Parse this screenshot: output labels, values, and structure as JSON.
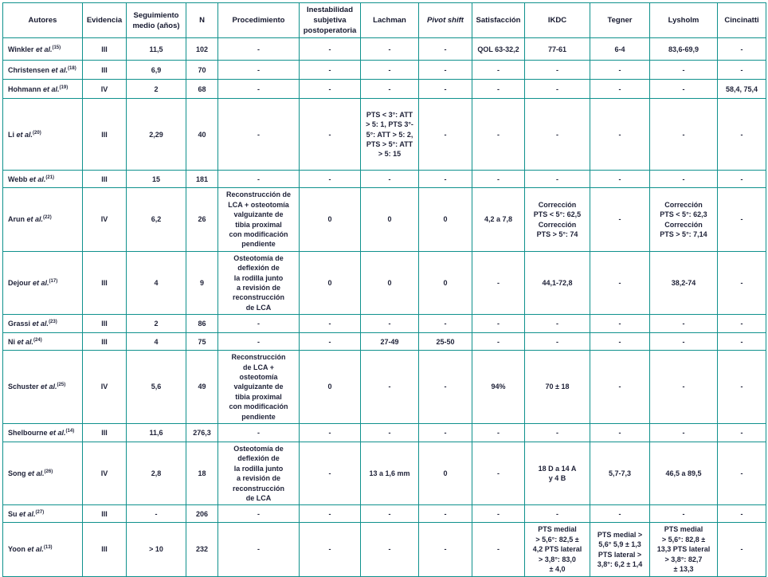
{
  "colors": {
    "border_teal": "#0f918d",
    "text": "#1e2137",
    "background": "#ffffff"
  },
  "table": {
    "columns": [
      {
        "label": "Autores",
        "italic": false
      },
      {
        "label": "Evidencia",
        "italic": false
      },
      {
        "label": "Seguimiento\nmedio (años)",
        "italic": false
      },
      {
        "label": "N",
        "italic": false
      },
      {
        "label": "Procedimiento",
        "italic": false
      },
      {
        "label": "Inestabilidad\nsubjetiva\npostoperatoria",
        "italic": false
      },
      {
        "label": "Lachman",
        "italic": false
      },
      {
        "label": "Pivot shift",
        "italic": true
      },
      {
        "label": "Satisfacción",
        "italic": false
      },
      {
        "label": "IKDC",
        "italic": false
      },
      {
        "label": "Tegner",
        "italic": false
      },
      {
        "label": "Lysholm",
        "italic": false
      },
      {
        "label": "Cincinatti",
        "italic": false
      }
    ],
    "rows": [
      {
        "author": {
          "name": "Winkler",
          "etal": "et al.",
          "ref": "(15)"
        },
        "cells": [
          "III",
          "11,5",
          "102",
          "-",
          "-",
          "-",
          "-",
          "QOL 63-32,2",
          "77-61",
          "6-4",
          "83,6-69,9",
          "-"
        ]
      },
      {
        "author": {
          "name": "Christensen",
          "etal": "et al.",
          "ref": "(18)"
        },
        "cells": [
          "III",
          "6,9",
          "70",
          "-",
          "-",
          "-",
          "-",
          "-",
          "-",
          "-",
          "-",
          "-"
        ]
      },
      {
        "author": {
          "name": "Hohmann",
          "etal": "et al.",
          "ref": "(19)"
        },
        "cells": [
          "IV",
          "2",
          "68",
          "-",
          "-",
          "-",
          "-",
          "-",
          "-",
          "-",
          "-",
          "58,4, 75,4"
        ]
      },
      {
        "author": {
          "name": "Li",
          "etal": "et al.",
          "ref": "(20)"
        },
        "cells": [
          "III",
          "2,29",
          "40",
          "-",
          "-",
          "PTS < 3°: ATT\n> 5: 1, PTS 3°-\n5°: ATT > 5: 2,\nPTS > 5°: ATT\n> 5: 15",
          "-",
          "-",
          "-",
          "-",
          "-",
          "-"
        ]
      },
      {
        "author": {
          "name": "Webb",
          "etal": "et al.",
          "ref": "(21)"
        },
        "cells": [
          "III",
          "15",
          "181",
          "-",
          "-",
          "-",
          "-",
          "-",
          "-",
          "-",
          "-",
          "-"
        ]
      },
      {
        "author": {
          "name": "Arun",
          "etal": "et al.",
          "ref": "(22)"
        },
        "cells": [
          "IV",
          "6,2",
          "26",
          "Reconstrucción de\nLCA + osteotomía\nvalguizante de\ntibia proximal\ncon modificación\npendiente",
          "0",
          "0",
          "0",
          "4,2 a 7,8",
          "Corrección\nPTS < 5°: 62,5\nCorrección\nPTS > 5°: 74",
          "-",
          "Corrección\nPTS < 5°: 62,3\nCorrección\nPTS > 5°: 7,14",
          "-"
        ]
      },
      {
        "author": {
          "name": "Dejour",
          "etal": "et al.",
          "ref": "(17)"
        },
        "cells": [
          "III",
          "4",
          "9",
          "Osteotomía de\ndeflexión de\nla rodilla junto\na revisión de\nreconstrucción\nde LCA",
          "0",
          "0",
          "0",
          "-",
          "44,1-72,8",
          "-",
          "38,2-74",
          "-"
        ]
      },
      {
        "author": {
          "name": "Grassi",
          "etal": "et al.",
          "ref": "(23)"
        },
        "cells": [
          "III",
          "2",
          "86",
          "-",
          "-",
          "-",
          "-",
          "-",
          "-",
          "-",
          "-",
          "-"
        ]
      },
      {
        "author": {
          "name": "Ni",
          "etal": "et al.",
          "ref": "(24)"
        },
        "cells": [
          "III",
          "4",
          "75",
          "-",
          "-",
          "27-49",
          "25-50",
          "-",
          "-",
          "-",
          "-",
          "-"
        ]
      },
      {
        "author": {
          "name": "Schuster",
          "etal": "et al.",
          "ref": "(25)"
        },
        "cells": [
          "IV",
          "5,6",
          "49",
          "Reconstrucción\nde LCA +\nosteotomía\nvalguizante de\ntibia proximal\ncon modificación\npendiente",
          "0",
          "-",
          "-",
          "94%",
          "70 ± 18",
          "-",
          "-",
          "-"
        ]
      },
      {
        "author": {
          "name": "Shelbourne",
          "etal": "et al.",
          "ref": "(14)"
        },
        "cells": [
          "III",
          "11,6",
          "276,3",
          "-",
          "-",
          "-",
          "-",
          "-",
          "-",
          "-",
          "-",
          "-"
        ]
      },
      {
        "author": {
          "name": "Song",
          "etal": "et al.",
          "ref": "(26)"
        },
        "cells": [
          "IV",
          "2,8",
          "18",
          "Osteotomía de\ndeflexión de\nla rodilla junto\na revisión de\nreconstrucción\nde LCA",
          "-",
          "13 a 1,6 mm",
          "0",
          "-",
          "18 D a 14 A\ny 4 B",
          "5,7-7,3",
          "46,5 a 89,5",
          "-"
        ]
      },
      {
        "author": {
          "name": "Su",
          "etal": "et al.",
          "ref": "(27)"
        },
        "cells": [
          "III",
          "-",
          "206",
          "-",
          "-",
          "-",
          "-",
          "-",
          "-",
          "-",
          "-",
          "-"
        ]
      },
      {
        "author": {
          "name": "Yoon",
          "etal": "et al.",
          "ref": "(13)"
        },
        "cells": [
          "III",
          "> 10",
          "232",
          "-",
          "-",
          "-",
          "-",
          "-",
          "PTS medial\n> 5,6°: 82,5 ±\n4,2 PTS lateral\n> 3,8°: 83,0\n± 4,0",
          "PTS medial >\n5,6° 5,9 ± 1,3\nPTS lateral >\n3,8°: 6,2 ± 1,4",
          "PTS medial\n> 5,6°: 82,8 ±\n13,3 PTS lateral\n> 3,8°: 82,7\n± 13,3",
          "-"
        ]
      }
    ]
  }
}
